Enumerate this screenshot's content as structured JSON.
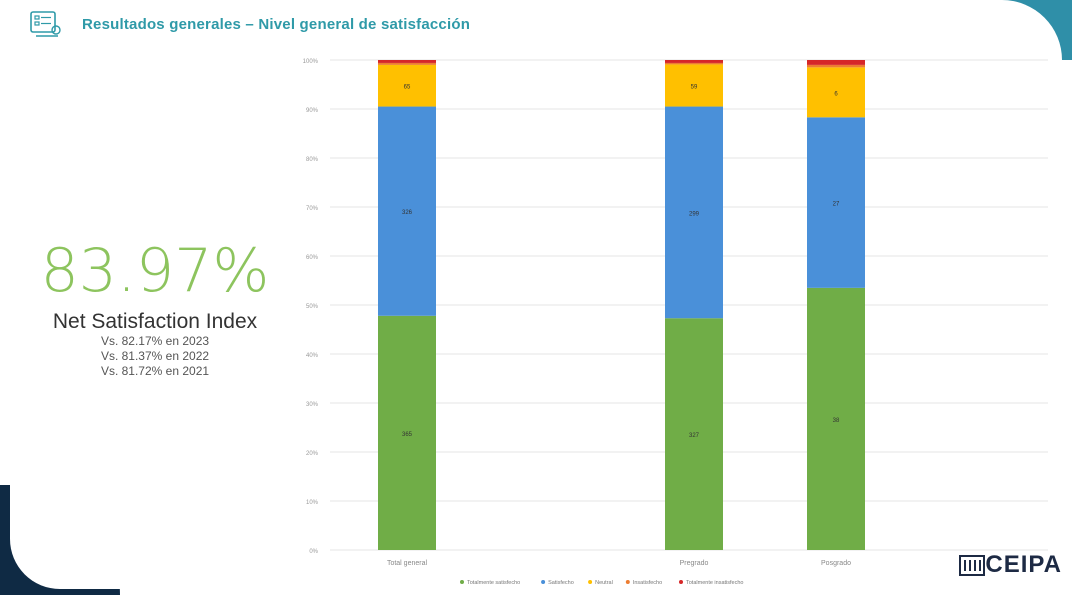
{
  "header": {
    "title": "Resultados generales – Nivel general de satisfacción",
    "icon": "checklist-icon"
  },
  "kpi": {
    "value": "83.97%",
    "label": "Net Satisfaction Index",
    "comparisons": [
      "Vs. 82.17% en 2023",
      "Vs. 81.37% en 2022",
      "Vs. 81.72% en 2021"
    ]
  },
  "logo": {
    "text": "CEIPA"
  },
  "chart_data": {
    "type": "bar",
    "stacked": true,
    "percent_axis": true,
    "ylim": [
      0,
      100
    ],
    "yticks": [
      "0%",
      "10%",
      "20%",
      "30%",
      "40%",
      "50%",
      "60%",
      "70%",
      "80%",
      "90%",
      "100%"
    ],
    "categories": [
      "Total general",
      "Pregrado",
      "Posgrado"
    ],
    "series": [
      {
        "name": "Totalmente satisfecho",
        "color": "#70ad47",
        "values": [
          47.8,
          47.3,
          53.5
        ],
        "labels": [
          "365",
          "327",
          "38"
        ]
      },
      {
        "name": "Satisfecho",
        "color": "#4a90d9",
        "values": [
          42.7,
          43.2,
          34.8
        ],
        "labels": [
          "326",
          "299",
          "27"
        ]
      },
      {
        "name": "Neutral",
        "color": "#ffc000",
        "values": [
          8.5,
          8.6,
          10.2
        ],
        "labels": [
          "65",
          "59",
          "6"
        ]
      },
      {
        "name": "Insatisfecho",
        "color": "#ed7d31",
        "values": [
          0.4,
          0.3,
          0.5
        ],
        "labels": [
          "",
          "",
          ""
        ]
      },
      {
        "name": "Totalmente insatisfecho",
        "color": "#d62728",
        "values": [
          0.6,
          0.6,
          1.0
        ],
        "labels": [
          "",
          "",
          ""
        ]
      }
    ],
    "grid": true,
    "legend": "bottom"
  }
}
